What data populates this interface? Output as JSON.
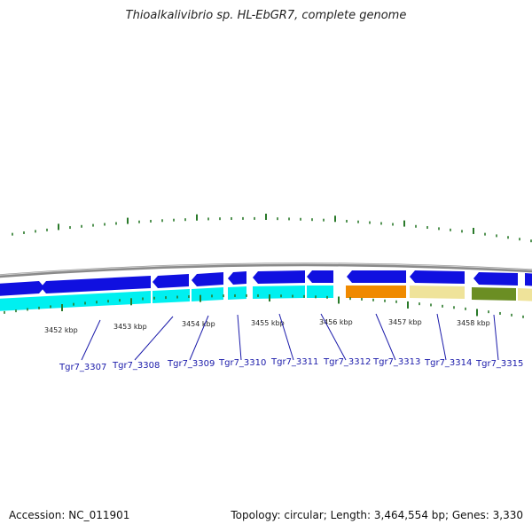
{
  "title": "Thioalkalivibrio sp. HL-EbGR7, complete genome",
  "footer": {
    "accession": "Accession: NC_011901",
    "topology": "Topology: circular; Length: 3,464,554 bp; Genes: 3,330"
  },
  "ruler_labels": [
    "3452 kbp",
    "3453 kbp",
    "3454 kbp",
    "3455 kbp",
    "3456 kbp",
    "3457 kbp",
    "3458 kbp"
  ],
  "gene_labels": [
    "Tgr7_3307",
    "Tgr7_3308",
    "Tgr7_3309",
    "Tgr7_3310",
    "Tgr7_3311",
    "Tgr7_3312",
    "Tgr7_3313",
    "Tgr7_3314",
    "Tgr7_3315"
  ],
  "colors": {
    "forward_gene": "#1010e0",
    "reverse_gene": "#00f0f0",
    "orange_gene": "#f08a00",
    "khaki_gene": "#efe39a",
    "olive_gene": "#6b8e23",
    "backbone": "#888888",
    "ticks": "#2a7a2a",
    "label": "#1a1aaa"
  }
}
